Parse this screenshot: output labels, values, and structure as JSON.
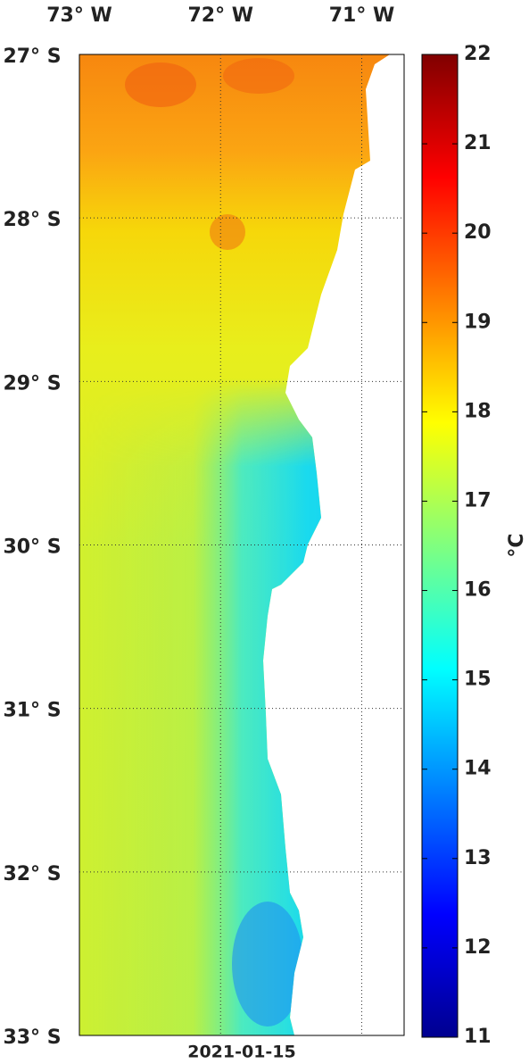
{
  "map": {
    "lon_ticks": [
      {
        "value": 73,
        "label": "73° W"
      },
      {
        "value": 72,
        "label": "72° W"
      },
      {
        "value": 71,
        "label": "71° W"
      }
    ],
    "lat_ticks": [
      {
        "value": 27,
        "label": "27° S"
      },
      {
        "value": 28,
        "label": "28° S"
      },
      {
        "value": 29,
        "label": "29° S"
      },
      {
        "value": 30,
        "label": "30° S"
      },
      {
        "value": 31,
        "label": "31° S"
      },
      {
        "value": 32,
        "label": "32° S"
      },
      {
        "value": 33,
        "label": "33° S"
      }
    ],
    "xlim": [
      73,
      70.7
    ],
    "ylim": [
      27,
      33
    ],
    "date": "2021-01-15"
  },
  "colorbar": {
    "label": "°C",
    "lim": [
      11,
      22
    ],
    "ticks": [
      11,
      12,
      13,
      14,
      15,
      16,
      17,
      18,
      19,
      20,
      21,
      22
    ]
  }
}
